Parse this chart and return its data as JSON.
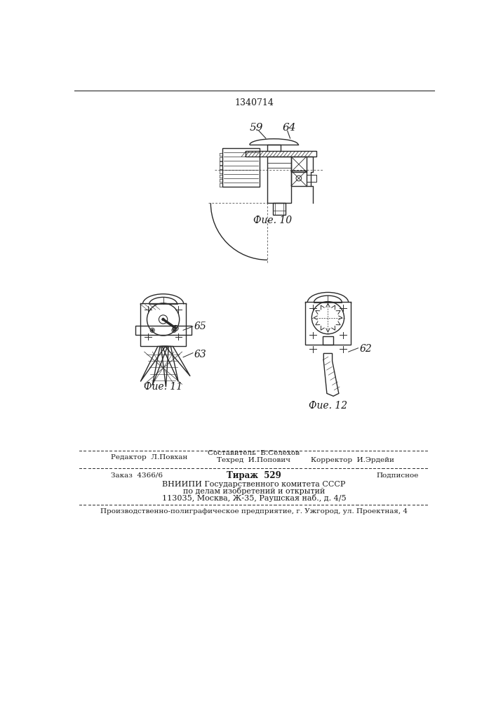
{
  "patent_number": "1340714",
  "fig10_label": "Фие. 10",
  "fig11_label": "Фие. 11",
  "fig12_label": "Фие. 12",
  "label_59": "59",
  "label_64": "64",
  "label_65": "65",
  "label_63": "63",
  "label_62": "62",
  "editor_line": "Редактор  Л.Повхан",
  "compiler_line": "Составитель  В.Селехов",
  "techred_line": "Техред  И.Попович",
  "corrector_line": "Корректор  И.Эрдейи",
  "order_line": "Заказ  4366/6",
  "tirazh_line": "Тираж  529",
  "podpisnoe_line": "Подписное",
  "vniiki_line1": "ВНИИПИ Государственного комитета СССР",
  "vniiki_line2": "по делам изобретений и открытий",
  "vniiki_line3": "113035, Москва, Ж-35, Раушская наб., д. 4/5",
  "factory_line": "Производственно-полиграфическое предприятие, г. Ужгород, ул. Проектная, 4",
  "bg_color": "#ffffff",
  "line_color": "#2a2a2a",
  "text_color": "#1a1a1a"
}
